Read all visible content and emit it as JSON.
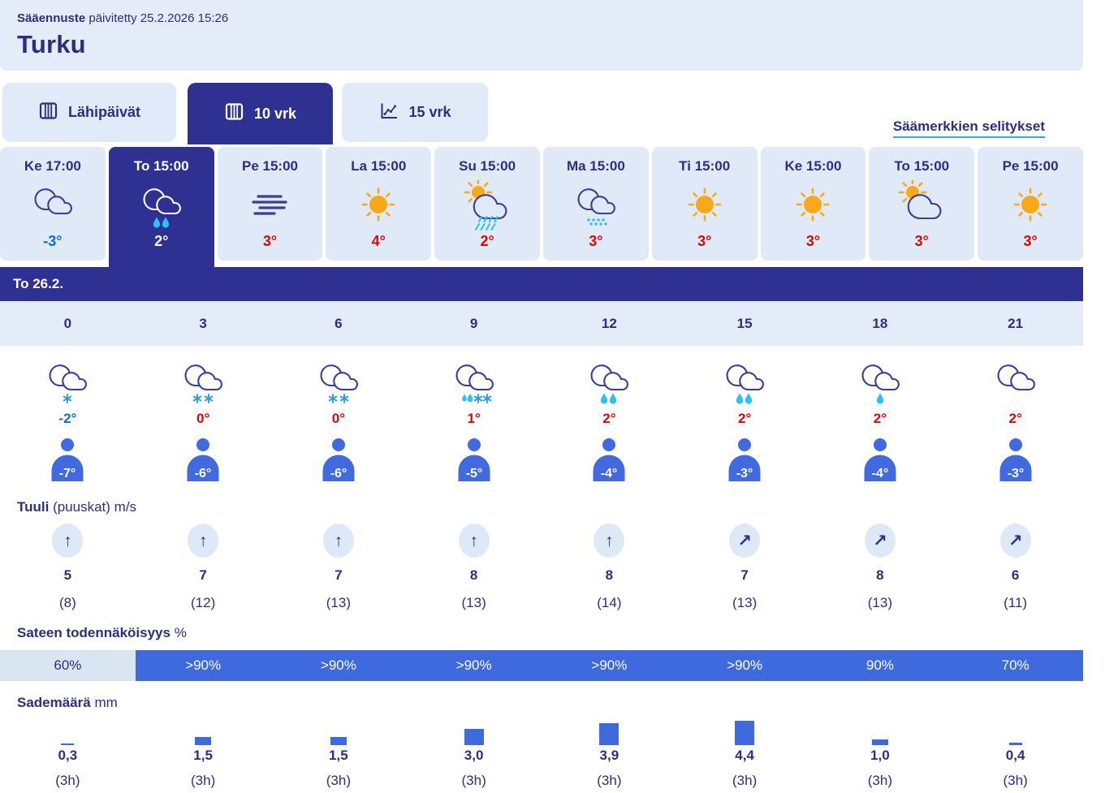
{
  "header": {
    "brand": "Sääennuste",
    "updated": "päivitetty 25.2.2026 15:26",
    "location": "Turku"
  },
  "tabs": [
    {
      "label": "Lähipäivät",
      "icon": "calendar-icon",
      "selected": false
    },
    {
      "label": "10 vrk",
      "icon": "calendar-icon",
      "selected": true
    },
    {
      "label": "15 vrk",
      "icon": "line-chart-icon",
      "selected": false
    }
  ],
  "legend_link": "Säämerkkien selitykset",
  "day_strip": [
    {
      "label": "Ke 17:00",
      "icon": "clouds",
      "temp": "-3°",
      "temp_color": "blue",
      "selected": false
    },
    {
      "label": "To 15:00",
      "icon": "clouds-w:rain2",
      "temp": "2°",
      "temp_color": "white",
      "selected": true
    },
    {
      "label": "Pe 15:00",
      "icon": "fog",
      "temp": "3°",
      "temp_color": "red",
      "selected": false
    },
    {
      "label": "La 15:00",
      "icon": "sun",
      "temp": "4°",
      "temp_color": "red",
      "selected": false
    },
    {
      "label": "Su 15:00",
      "icon": "sun-cloud:rainslash",
      "temp": "2°",
      "temp_color": "red",
      "selected": false
    },
    {
      "label": "Ma 15:00",
      "icon": "clouds:drizzle",
      "temp": "3°",
      "temp_color": "red",
      "selected": false
    },
    {
      "label": "Ti 15:00",
      "icon": "sun",
      "temp": "3°",
      "temp_color": "red",
      "selected": false
    },
    {
      "label": "Ke 15:00",
      "icon": "sun",
      "temp": "3°",
      "temp_color": "red",
      "selected": false
    },
    {
      "label": "To 15:00",
      "icon": "sun-cloud",
      "temp": "3°",
      "temp_color": "red",
      "selected": false
    },
    {
      "label": "Pe 15:00",
      "icon": "sun",
      "temp": "3°",
      "temp_color": "red",
      "selected": false
    }
  ],
  "selected_day_banner": "To 26.2.",
  "hourly": {
    "hours": [
      "0",
      "3",
      "6",
      "9",
      "12",
      "15",
      "18",
      "21"
    ],
    "icons": [
      "clouds:snow1",
      "clouds:snow2",
      "clouds:snow2",
      "clouds:sleet",
      "clouds:rain2",
      "clouds:rain2",
      "clouds:rain1",
      "clouds"
    ],
    "temps": [
      {
        "value": "-2°",
        "color": "blue"
      },
      {
        "value": "0°",
        "color": "red"
      },
      {
        "value": "0°",
        "color": "red"
      },
      {
        "value": "1°",
        "color": "red"
      },
      {
        "value": "2°",
        "color": "red"
      },
      {
        "value": "2°",
        "color": "red"
      },
      {
        "value": "2°",
        "color": "red"
      },
      {
        "value": "2°",
        "color": "red"
      }
    ],
    "feels_like": [
      "-7°",
      "-6°",
      "-6°",
      "-5°",
      "-4°",
      "-3°",
      "-4°",
      "-3°"
    ]
  },
  "wind": {
    "label_bold": "Tuuli",
    "label_rest": " (puuskat) m/s",
    "directions": [
      "up",
      "up",
      "up",
      "up",
      "up",
      "ne",
      "ne",
      "ne"
    ],
    "speeds": [
      "5",
      "7",
      "7",
      "8",
      "8",
      "7",
      "8",
      "6"
    ],
    "gusts": [
      "(8)",
      "(12)",
      "(13)",
      "(13)",
      "(14)",
      "(13)",
      "(13)",
      "(11)"
    ]
  },
  "precip_probability": {
    "label_bold": "Sateen todennäköisyys",
    "label_rest": " %",
    "values": [
      {
        "text": "60%",
        "highlight": false
      },
      {
        "text": ">90%",
        "highlight": true
      },
      {
        "text": ">90%",
        "highlight": true
      },
      {
        "text": ">90%",
        "highlight": true
      },
      {
        "text": ">90%",
        "highlight": true
      },
      {
        "text": ">90%",
        "highlight": true
      },
      {
        "text": "90%",
        "highlight": true
      },
      {
        "text": "70%",
        "highlight": true
      }
    ]
  },
  "precip_amount": {
    "label_bold": "Sademäärä",
    "label_rest": " mm",
    "values": [
      "0,3",
      "1,5",
      "1,5",
      "3,0",
      "3,9",
      "4,4",
      "1,0",
      "0,4"
    ],
    "durations": [
      "(3h)",
      "(3h)",
      "(3h)",
      "(3h)",
      "(3h)",
      "(3h)",
      "(3h)",
      "(3h)"
    ],
    "bar_mm": [
      0.3,
      1.5,
      1.5,
      3.0,
      3.9,
      4.4,
      1.0,
      0.4
    ]
  },
  "colors": {
    "accent_dark": "#2e3191",
    "text_navy": "#2a2f7f",
    "panel_light": "#e3ecf8",
    "cell_light": "#dfe9f7",
    "royal_blue": "#3e6ade",
    "person_blue": "#4169e0",
    "temp_red": "#dd0505",
    "temp_blue": "#0a6ed0",
    "drop_cyan": "#29c2f2",
    "flake_blue": "#2d9ce6",
    "sun_orange": "#f9a817",
    "link_underline": "#2fb2c6"
  }
}
